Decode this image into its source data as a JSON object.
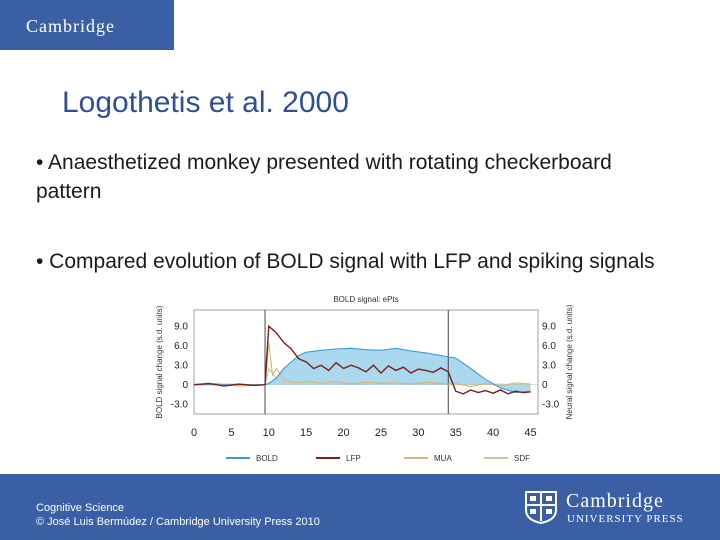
{
  "header": {
    "logo_text": "Cambridge"
  },
  "slide": {
    "title": "Logothetis et al. 2000",
    "bullets": [
      "• Anaesthetized monkey presented with rotating checkerboard pattern",
      "• Compared evolution of BOLD signal with LFP and spiking signals"
    ]
  },
  "footer": {
    "line1": "Cognitive Science",
    "line2": "© José Luis Bermúdez / Cambridge University Press 2010",
    "publisher_line1": "Cambridge",
    "publisher_line2": "UNIVERSITY PRESS"
  },
  "colors": {
    "brand_blue": "#3a5fa5",
    "title_blue": "#2f4f94"
  },
  "chart_data": {
    "type": "line",
    "title": "BOLD signal: ePts",
    "ylabel_left": "BOLD signal change (s.d. units)",
    "ylabel_right": "Neural signal change (s.d. units)",
    "xlim": [
      0,
      46
    ],
    "ylim": [
      -4.5,
      11.5
    ],
    "x_ticks": [
      "0",
      "5",
      "10",
      "15",
      "20",
      "25",
      "30",
      "35",
      "40",
      "45"
    ],
    "y_ticks_left": [
      "9.0",
      "6.0",
      "3.0",
      "0",
      "-3.0"
    ],
    "y_ticks_right": [
      "9.0",
      "6.0",
      "3.0",
      "0",
      "-3.0"
    ],
    "vlines": [
      9.5,
      34
    ],
    "series": [
      {
        "name": "BOLD",
        "color": "#3c9ad4",
        "fill": "#aad8ef",
        "x": [
          0,
          5,
          9.5,
          10,
          11,
          12,
          13,
          14,
          15,
          17,
          19,
          21,
          23,
          25,
          27,
          29,
          31,
          33,
          35,
          37,
          39,
          41,
          43,
          45
        ],
        "y": [
          0,
          0,
          0,
          0.2,
          1.0,
          2.5,
          3.5,
          4.5,
          5.0,
          5.3,
          5.5,
          5.6,
          5.4,
          5.3,
          5.6,
          5.2,
          4.9,
          4.5,
          4.1,
          2.5,
          0.8,
          -0.5,
          -1.2,
          -1.0
        ]
      },
      {
        "name": "LFP",
        "color": "#7a1f1a",
        "x": [
          0,
          2,
          4,
          6,
          8,
          9.5,
          10,
          11,
          12,
          13,
          14,
          15,
          16,
          17,
          18,
          19,
          20,
          21,
          22,
          23,
          24,
          25,
          26,
          27,
          28,
          29,
          30,
          31,
          32,
          33,
          34,
          35,
          36,
          37,
          38,
          39,
          40,
          41,
          42,
          43,
          44,
          45
        ],
        "y": [
          0,
          0.2,
          -0.2,
          0.1,
          -0.1,
          0,
          9.0,
          8.0,
          6.5,
          5.5,
          4.0,
          3.5,
          2.5,
          3.0,
          2.2,
          3.4,
          2.5,
          3.0,
          2.6,
          2.0,
          3.0,
          1.8,
          2.9,
          2.2,
          2.7,
          1.8,
          2.4,
          2.2,
          1.9,
          2.6,
          2.0,
          -1.0,
          -1.4,
          -0.8,
          -1.2,
          -0.9,
          -1.3,
          -0.8,
          -1.4,
          -1.0,
          -1.2,
          -1.1
        ]
      },
      {
        "name": "MUA",
        "color": "#d4b67a",
        "x": [
          0,
          3,
          6,
          9.5,
          10,
          10.5,
          11,
          12,
          13,
          14,
          15,
          17,
          19,
          21,
          23,
          25,
          27,
          29,
          31,
          33,
          34,
          35,
          37,
          39,
          41,
          43,
          45
        ],
        "y": [
          0,
          0.2,
          -0.2,
          0,
          6.5,
          1.5,
          2.5,
          0.8,
          0.5,
          0.3,
          0.6,
          0.2,
          0.5,
          0.1,
          0.4,
          0.2,
          0.3,
          0.1,
          0.4,
          0.2,
          0.1,
          0.2,
          -0.3,
          0.2,
          -0.2,
          0.3,
          0.1
        ]
      },
      {
        "name": "SDF",
        "color": "#b8cfa8",
        "x": [
          0,
          5,
          9.5,
          10,
          11,
          12,
          15,
          20,
          25,
          30,
          34,
          35,
          40,
          45
        ],
        "y": [
          0,
          0.1,
          0,
          2.5,
          1.0,
          0.4,
          0.3,
          0.2,
          0.3,
          0.2,
          0.1,
          0,
          0.1,
          0
        ]
      }
    ]
  }
}
